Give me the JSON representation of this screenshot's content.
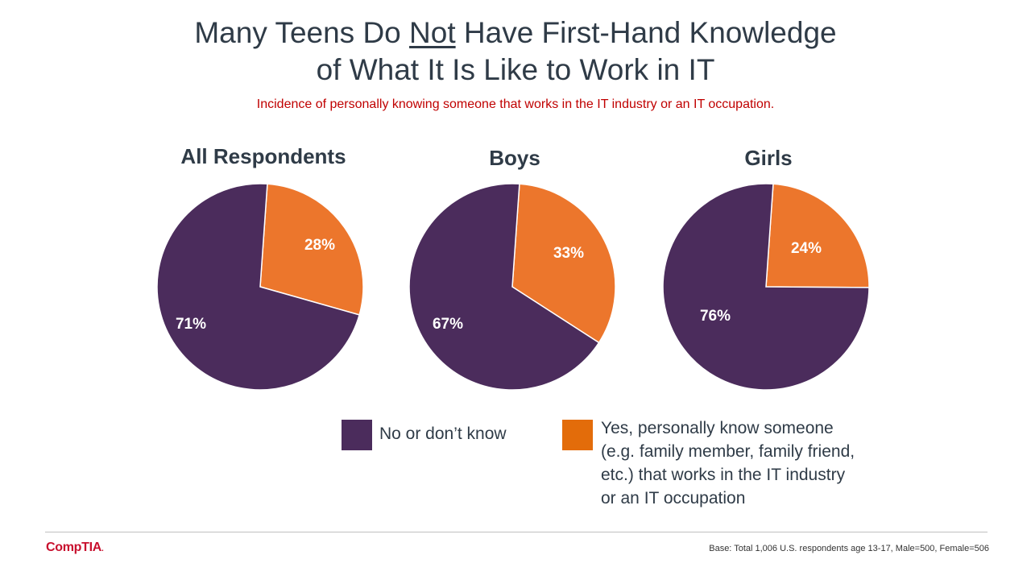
{
  "header": {
    "title_line1_pre": "Many Teens Do ",
    "title_line1_underlined": "Not",
    "title_line1_post": " Have First-Hand Knowledge",
    "title_line2": "of What It Is Like to Work in IT",
    "subtitle": "Incidence of personally knowing someone that works in the IT industry or an IT occupation."
  },
  "colors": {
    "no_or_dont_know": "#4b2c5c",
    "yes_know_someone": "#ec762c",
    "title": "#2f3b47",
    "subtitle": "#c00000"
  },
  "legend": [
    {
      "label": "No or don’t know",
      "color": "#4b2c5c"
    },
    {
      "label_lines": [
        "Yes, personally know someone",
        "(e.g. family member, family friend,",
        "etc.) that works in the IT industry",
        "or an IT occupation"
      ],
      "color": "#e36c0a"
    }
  ],
  "chart_data": [
    {
      "type": "pie",
      "title": "All Respondents",
      "slices": [
        {
          "name": "Yes, personally know someone",
          "value": 28,
          "label": "28%",
          "color": "#ec762c"
        },
        {
          "name": "No or don’t know",
          "value": 71,
          "label": "71%",
          "color": "#4b2c5c"
        }
      ]
    },
    {
      "type": "pie",
      "title": "Boys",
      "slices": [
        {
          "name": "Yes, personally know someone",
          "value": 33,
          "label": "33%",
          "color": "#ec762c"
        },
        {
          "name": "No or don’t know",
          "value": 67,
          "label": "67%",
          "color": "#4b2c5c"
        }
      ]
    },
    {
      "type": "pie",
      "title": "Girls",
      "slices": [
        {
          "name": "Yes, personally know someone",
          "value": 24,
          "label": "24%",
          "color": "#ec762c"
        },
        {
          "name": "No or don’t know",
          "value": 76,
          "label": "76%",
          "color": "#4b2c5c"
        }
      ]
    }
  ],
  "footer": {
    "logo": "CompTIA",
    "logo_mark": ".",
    "note": "Base: Total 1,006 U.S. respondents age 13-17, Male=500, Female=506"
  }
}
